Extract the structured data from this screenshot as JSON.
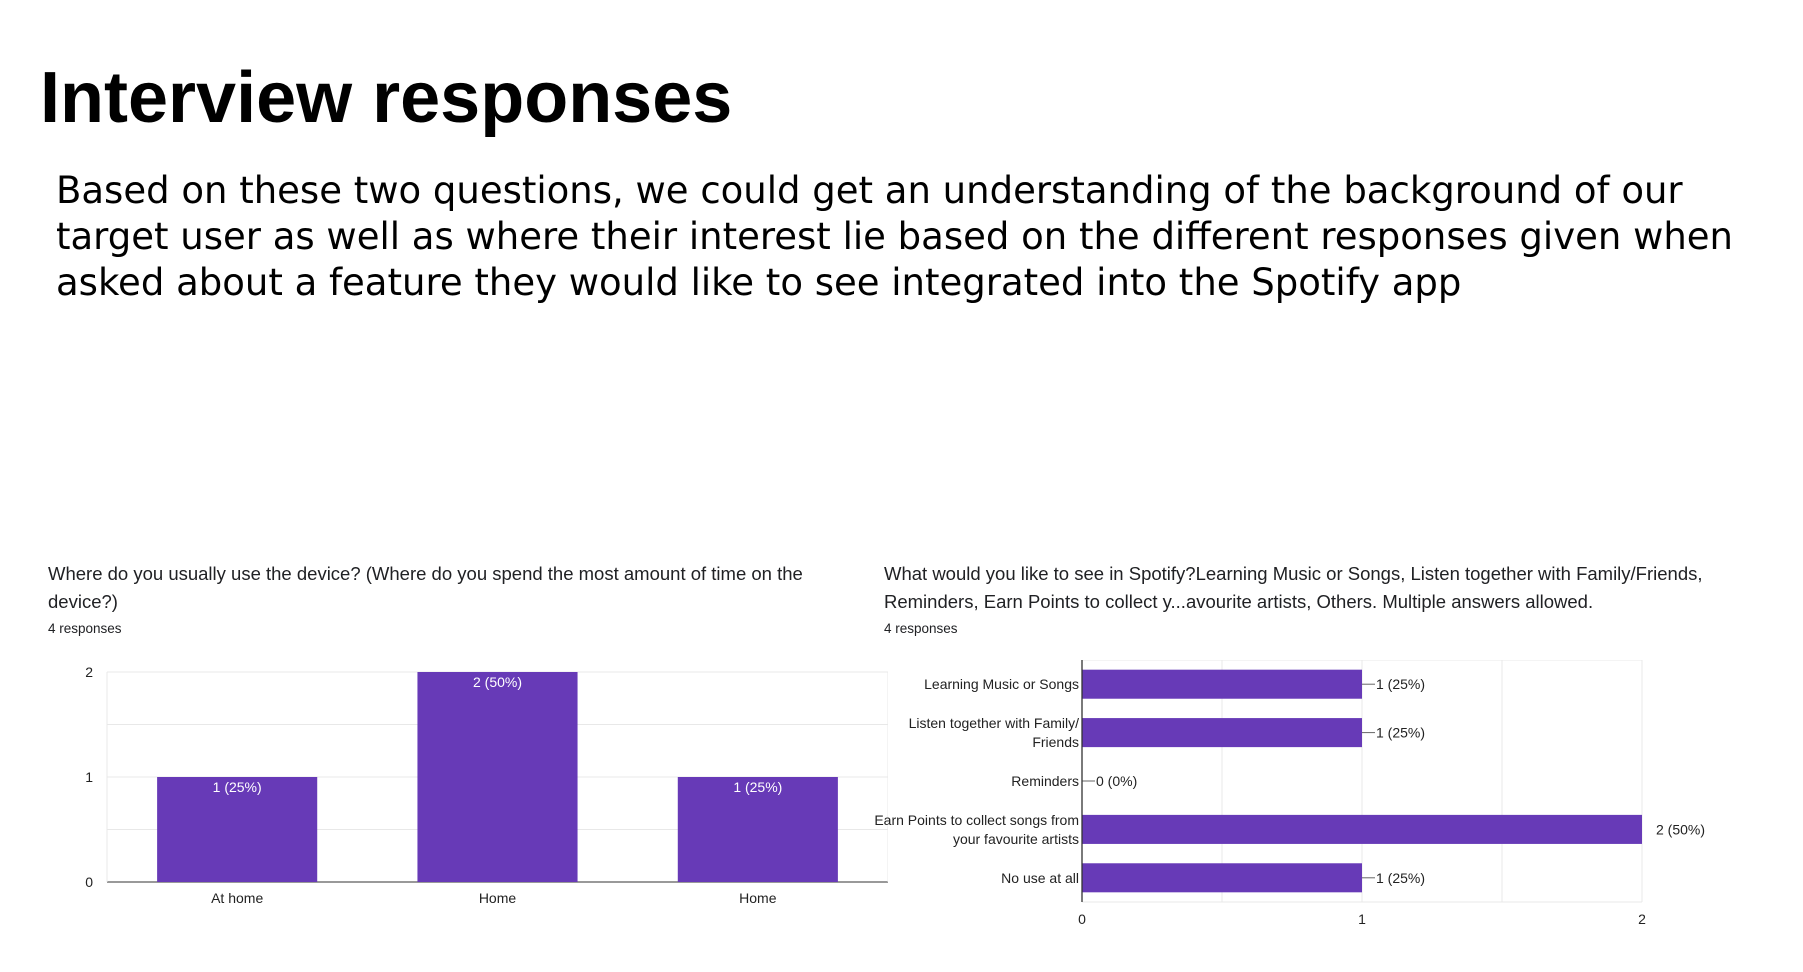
{
  "slide": {
    "title": "Interview responses",
    "body": "Based on these two questions, we could get an understanding of the background of our target user as well as where their interest lie based on the different responses given when asked about a feature they would like to see integrated into the Spotify app"
  },
  "colors": {
    "bar": "#673ab7",
    "grid": "#e8e8e8",
    "axis": "#333333",
    "text": "#222222"
  },
  "chart_data": [
    {
      "type": "bar",
      "orientation": "vertical",
      "title": "Where do you usually use the device? (Where do you spend the most amount of time on the device?)",
      "subtitle": "4 responses",
      "categories": [
        "At home",
        "Home",
        "Home"
      ],
      "values": [
        1,
        2,
        1
      ],
      "data_labels": [
        "1 (25%)",
        "2 (50%)",
        "1 (25%)"
      ],
      "y_ticks": [
        "0",
        "1",
        "2"
      ],
      "ylim": [
        0,
        2
      ],
      "grid": true,
      "xlabel": "",
      "ylabel": ""
    },
    {
      "type": "bar",
      "orientation": "horizontal",
      "title": "What would you like to see in Spotify?Learning Music or Songs, Listen together with Family/Friends, Reminders, Earn Points to collect y...avourite artists, Others. Multiple answers allowed.",
      "subtitle": "4 responses",
      "categories": [
        [
          "Learning Music or Songs"
        ],
        [
          "Listen together with Family/",
          "Friends"
        ],
        [
          "Reminders"
        ],
        [
          "Earn Points to collect songs from",
          "your favourite artists"
        ],
        [
          "No use at all"
        ]
      ],
      "values": [
        1,
        1,
        0,
        2,
        1
      ],
      "data_labels": [
        "1 (25%)",
        "1 (25%)",
        "0 (0%)",
        "2 (50%)",
        "1 (25%)"
      ],
      "x_ticks": [
        "0",
        "1",
        "2"
      ],
      "xlim": [
        0,
        2
      ],
      "grid": true,
      "xlabel": "",
      "ylabel": ""
    }
  ]
}
